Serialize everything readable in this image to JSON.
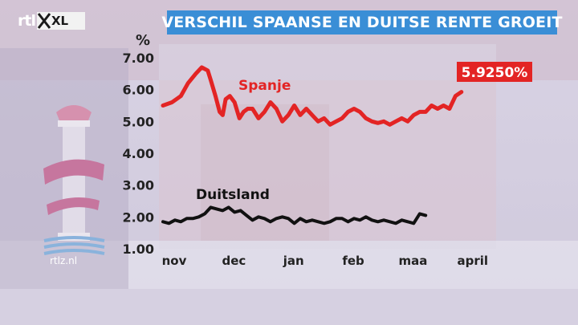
{
  "header": {
    "logo_text": "rtl",
    "logo_badge": "XL",
    "title": "VERSCHIL SPAANSE EN DUITSE RENTE GROEIT"
  },
  "footer": {
    "website": "rtlz.nl"
  },
  "colors": {
    "spain": "#e32424",
    "germany": "#111111",
    "title_bar": "#3a8ed6",
    "callout": "#e32424"
  },
  "chart_data": {
    "type": "line",
    "ylabel": "%",
    "ylim": [
      1.0,
      7.0
    ],
    "yticks": [
      "7.00",
      "6.00",
      "5.00",
      "4.00",
      "3.00",
      "2.00",
      "1.00"
    ],
    "ytick_values": [
      7,
      6,
      5,
      4,
      3,
      2,
      1
    ],
    "xlim": [
      0,
      5.5
    ],
    "xtick_labels": [
      "nov",
      "dec",
      "jan",
      "feb",
      "maa",
      "april"
    ],
    "xtick_values": [
      0,
      1,
      2,
      3,
      4,
      5
    ],
    "callout": "5.9250%",
    "series": [
      {
        "name": "Spanje",
        "x": [
          0,
          0.15,
          0.3,
          0.42,
          0.55,
          0.65,
          0.75,
          0.8,
          0.88,
          0.95,
          1.0,
          1.05,
          1.12,
          1.2,
          1.28,
          1.35,
          1.42,
          1.5,
          1.6,
          1.7,
          1.8,
          1.9,
          2.0,
          2.1,
          2.2,
          2.3,
          2.4,
          2.5,
          2.6,
          2.7,
          2.8,
          2.9,
          3.0,
          3.1,
          3.2,
          3.3,
          3.4,
          3.5,
          3.6,
          3.7,
          3.8,
          3.9,
          4.0,
          4.1,
          4.2,
          4.3,
          4.4,
          4.5,
          4.6,
          4.7,
          4.8,
          4.9,
          5.0
        ],
        "values": [
          5.5,
          5.6,
          5.8,
          6.2,
          6.5,
          6.7,
          6.6,
          6.3,
          5.8,
          5.3,
          5.2,
          5.7,
          5.8,
          5.6,
          5.1,
          5.3,
          5.4,
          5.4,
          5.1,
          5.3,
          5.6,
          5.4,
          5.0,
          5.2,
          5.5,
          5.2,
          5.4,
          5.2,
          5.0,
          5.1,
          4.9,
          5.0,
          5.1,
          5.3,
          5.4,
          5.3,
          5.1,
          5.0,
          4.95,
          5.0,
          4.9,
          5.0,
          5.1,
          5.0,
          5.2,
          5.3,
          5.3,
          5.5,
          5.4,
          5.5,
          5.4,
          5.8,
          5.925
        ]
      },
      {
        "name": "Duitsland",
        "x": [
          0,
          0.1,
          0.2,
          0.3,
          0.4,
          0.5,
          0.6,
          0.7,
          0.8,
          0.9,
          1.0,
          1.1,
          1.2,
          1.3,
          1.4,
          1.5,
          1.6,
          1.7,
          1.8,
          1.9,
          2.0,
          2.1,
          2.2,
          2.3,
          2.4,
          2.5,
          2.6,
          2.7,
          2.8,
          2.9,
          3.0,
          3.1,
          3.2,
          3.3,
          3.4,
          3.5,
          3.6,
          3.7,
          3.8,
          3.9,
          4.0,
          4.1,
          4.2,
          4.3,
          4.4
        ],
        "values": [
          1.85,
          1.8,
          1.9,
          1.85,
          1.95,
          1.95,
          2.0,
          2.1,
          2.3,
          2.25,
          2.2,
          2.3,
          2.15,
          2.2,
          2.05,
          1.9,
          2.0,
          1.95,
          1.85,
          1.95,
          2.0,
          1.95,
          1.8,
          1.95,
          1.85,
          1.9,
          1.85,
          1.8,
          1.85,
          1.95,
          1.95,
          1.85,
          1.95,
          1.9,
          2.0,
          1.9,
          1.85,
          1.9,
          1.85,
          1.8,
          1.9,
          1.85,
          1.8,
          2.1,
          2.05
        ]
      }
    ]
  }
}
